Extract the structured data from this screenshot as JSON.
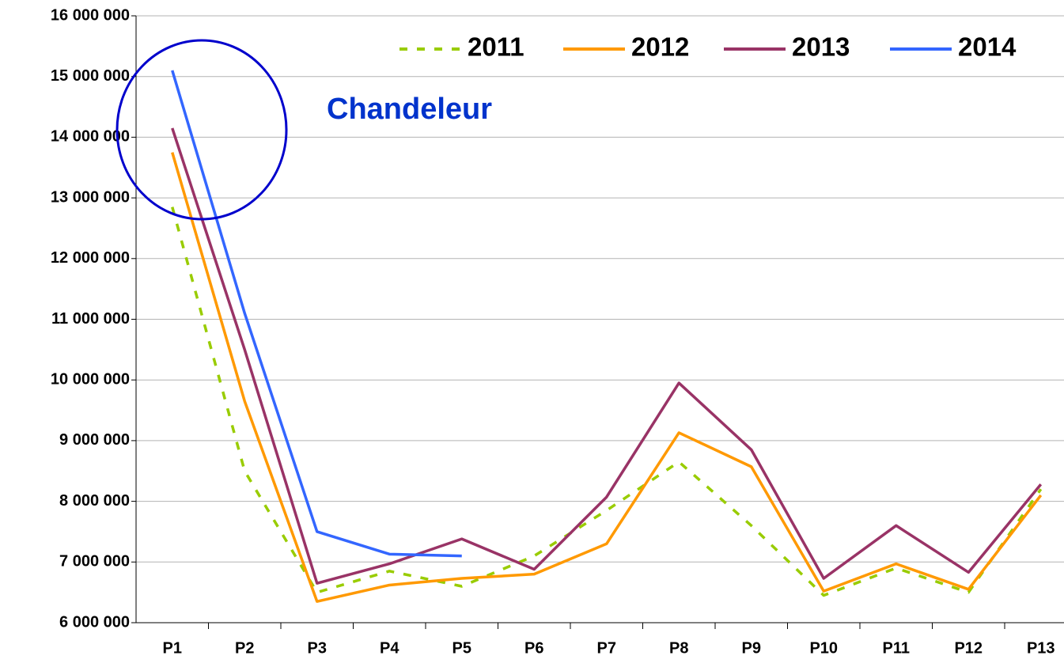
{
  "chart_data": {
    "type": "line",
    "categories": [
      "P1",
      "P2",
      "P3",
      "P4",
      "P5",
      "P6",
      "P7",
      "P8",
      "P9",
      "P10",
      "P11",
      "P12",
      "P13"
    ],
    "series": [
      {
        "name": "2011",
        "color": "#99cc00",
        "dashed": true,
        "values": [
          12850000,
          8500000,
          6500000,
          6850000,
          6600000,
          7100000,
          7850000,
          8650000,
          7600000,
          6450000,
          6900000,
          6500000,
          8200000
        ]
      },
      {
        "name": "2012",
        "color": "#ff9900",
        "values": [
          13750000,
          9650000,
          6350000,
          6620000,
          6730000,
          6800000,
          7300000,
          9130000,
          8570000,
          6520000,
          6970000,
          6550000,
          8100000
        ]
      },
      {
        "name": "2013",
        "color": "#993366",
        "values": [
          14150000,
          10500000,
          6650000,
          6970000,
          7380000,
          6880000,
          8070000,
          9950000,
          8850000,
          6730000,
          7600000,
          6830000,
          8280000
        ]
      },
      {
        "name": "2014",
        "color": "#3366ff",
        "values": [
          15100000,
          11100000,
          7500000,
          7130000,
          7100000,
          null,
          null,
          null,
          null,
          null,
          null,
          null,
          null
        ]
      }
    ],
    "ylim": [
      6000000,
      16000000
    ],
    "yticks": [
      {
        "value": 6000000,
        "label": "6 000 000"
      },
      {
        "value": 7000000,
        "label": "7 000 000"
      },
      {
        "value": 8000000,
        "label": "8 000 000"
      },
      {
        "value": 9000000,
        "label": "9 000 000"
      },
      {
        "value": 10000000,
        "label": "10 000 000"
      },
      {
        "value": 11000000,
        "label": "11 000 000"
      },
      {
        "value": 12000000,
        "label": "12 000 000"
      },
      {
        "value": 13000000,
        "label": "13 000 000"
      },
      {
        "value": 14000000,
        "label": "14 000 000"
      },
      {
        "value": 15000000,
        "label": "15 000 000"
      },
      {
        "value": 16000000,
        "label": "16 000 000"
      }
    ],
    "grid": true,
    "legend": "top",
    "annotation": "Chandeleur"
  }
}
